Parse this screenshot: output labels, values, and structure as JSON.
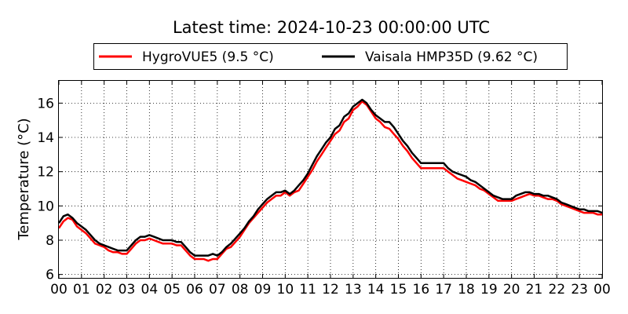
{
  "chart_data": {
    "type": "line",
    "title": "Latest time: 2024-10-23 00:00:00 UTC",
    "xlabel": "",
    "ylabel": "Temperature (°C)",
    "x_unit": "hour",
    "xlim": [
      0,
      24
    ],
    "ylim": [
      5.8,
      17.3
    ],
    "x_ticks": [
      0,
      1,
      2,
      3,
      4,
      5,
      6,
      7,
      8,
      9,
      10,
      11,
      12,
      13,
      14,
      15,
      16,
      17,
      18,
      19,
      20,
      21,
      22,
      23,
      24
    ],
    "x_tick_labels": [
      "00",
      "01",
      "02",
      "03",
      "04",
      "05",
      "06",
      "07",
      "08",
      "09",
      "10",
      "11",
      "12",
      "13",
      "14",
      "15",
      "16",
      "17",
      "18",
      "19",
      "20",
      "21",
      "22",
      "23",
      "00"
    ],
    "y_ticks": [
      6,
      8,
      10,
      12,
      14,
      16
    ],
    "y_tick_labels": [
      "6",
      "8",
      "10",
      "12",
      "14",
      "16"
    ],
    "grid": true,
    "legend_position": "top",
    "series": [
      {
        "name": "HygroVUE5 (9.5 °C)",
        "color": "#ff0000",
        "x": [
          0,
          0.2,
          0.4,
          0.6,
          0.8,
          1.0,
          1.2,
          1.4,
          1.6,
          1.8,
          2.0,
          2.2,
          2.4,
          2.6,
          2.8,
          3.0,
          3.2,
          3.4,
          3.6,
          3.8,
          4.0,
          4.2,
          4.4,
          4.6,
          4.8,
          5.0,
          5.2,
          5.4,
          5.6,
          5.8,
          6.0,
          6.2,
          6.4,
          6.6,
          6.8,
          7.0,
          7.2,
          7.4,
          7.6,
          7.8,
          8.0,
          8.2,
          8.4,
          8.6,
          8.8,
          9.0,
          9.2,
          9.4,
          9.6,
          9.8,
          10.0,
          10.2,
          10.4,
          10.6,
          10.8,
          11.0,
          11.2,
          11.4,
          11.6,
          11.8,
          12.0,
          12.2,
          12.4,
          12.6,
          12.8,
          13.0,
          13.2,
          13.4,
          13.6,
          13.8,
          14.0,
          14.2,
          14.4,
          14.6,
          14.8,
          15.0,
          15.2,
          15.4,
          15.6,
          15.8,
          16.0,
          16.2,
          16.4,
          16.6,
          16.8,
          17.0,
          17.2,
          17.4,
          17.6,
          17.8,
          18.0,
          18.2,
          18.4,
          18.6,
          18.8,
          19.0,
          19.2,
          19.4,
          19.6,
          19.8,
          20.0,
          20.2,
          20.4,
          20.6,
          20.8,
          21.0,
          21.2,
          21.4,
          21.6,
          21.8,
          22.0,
          22.2,
          22.4,
          22.6,
          22.8,
          23.0,
          23.2,
          23.4,
          23.6,
          23.8,
          24.0
        ],
        "y": [
          8.7,
          9.1,
          9.3,
          9.2,
          8.8,
          8.6,
          8.4,
          8.1,
          7.8,
          7.7,
          7.6,
          7.4,
          7.3,
          7.3,
          7.2,
          7.2,
          7.5,
          7.8,
          8.0,
          8.0,
          8.1,
          8.0,
          7.9,
          7.8,
          7.8,
          7.8,
          7.7,
          7.7,
          7.4,
          7.1,
          6.9,
          6.9,
          6.9,
          6.8,
          6.9,
          6.9,
          7.2,
          7.5,
          7.6,
          7.9,
          8.2,
          8.6,
          9.0,
          9.3,
          9.6,
          9.9,
          10.2,
          10.4,
          10.6,
          10.6,
          10.8,
          10.6,
          10.8,
          10.9,
          11.3,
          11.7,
          12.1,
          12.6,
          13.0,
          13.4,
          13.8,
          14.2,
          14.4,
          14.9,
          15.1,
          15.6,
          15.8,
          16.1,
          15.9,
          15.5,
          15.1,
          14.9,
          14.6,
          14.5,
          14.2,
          13.9,
          13.5,
          13.2,
          12.8,
          12.5,
          12.2,
          12.2,
          12.2,
          12.2,
          12.2,
          12.2,
          12.0,
          11.8,
          11.6,
          11.5,
          11.4,
          11.3,
          11.2,
          11.0,
          10.9,
          10.7,
          10.5,
          10.3,
          10.3,
          10.3,
          10.3,
          10.4,
          10.5,
          10.6,
          10.7,
          10.6,
          10.6,
          10.5,
          10.4,
          10.4,
          10.3,
          10.1,
          10.0,
          9.9,
          9.8,
          9.7,
          9.6,
          9.6,
          9.6,
          9.5,
          9.5
        ]
      },
      {
        "name": "Vaisala HMP35D (9.62 °C)",
        "color": "#000000",
        "x": [
          0,
          0.2,
          0.4,
          0.6,
          0.8,
          1.0,
          1.2,
          1.4,
          1.6,
          1.8,
          2.0,
          2.2,
          2.4,
          2.6,
          2.8,
          3.0,
          3.2,
          3.4,
          3.6,
          3.8,
          4.0,
          4.2,
          4.4,
          4.6,
          4.8,
          5.0,
          5.2,
          5.4,
          5.6,
          5.8,
          6.0,
          6.2,
          6.4,
          6.6,
          6.8,
          7.0,
          7.2,
          7.4,
          7.6,
          7.8,
          8.0,
          8.2,
          8.4,
          8.6,
          8.8,
          9.0,
          9.2,
          9.4,
          9.6,
          9.8,
          10.0,
          10.2,
          10.4,
          10.6,
          10.8,
          11.0,
          11.2,
          11.4,
          11.6,
          11.8,
          12.0,
          12.2,
          12.4,
          12.6,
          12.8,
          13.0,
          13.2,
          13.4,
          13.6,
          13.8,
          14.0,
          14.2,
          14.4,
          14.6,
          14.8,
          15.0,
          15.2,
          15.4,
          15.6,
          15.8,
          16.0,
          16.2,
          16.4,
          16.6,
          16.8,
          17.0,
          17.2,
          17.4,
          17.6,
          17.8,
          18.0,
          18.2,
          18.4,
          18.6,
          18.8,
          19.0,
          19.2,
          19.4,
          19.6,
          19.8,
          20.0,
          20.2,
          20.4,
          20.6,
          20.8,
          21.0,
          21.2,
          21.4,
          21.6,
          21.8,
          22.0,
          22.2,
          22.4,
          22.6,
          22.8,
          23.0,
          23.2,
          23.4,
          23.6,
          23.8,
          24.0
        ],
        "y": [
          9.0,
          9.4,
          9.5,
          9.3,
          9.0,
          8.8,
          8.6,
          8.3,
          8.0,
          7.8,
          7.7,
          7.6,
          7.5,
          7.4,
          7.4,
          7.4,
          7.7,
          8.0,
          8.2,
          8.2,
          8.3,
          8.2,
          8.1,
          8.0,
          8.0,
          8.0,
          7.9,
          7.9,
          7.6,
          7.3,
          7.1,
          7.1,
          7.1,
          7.1,
          7.2,
          7.1,
          7.3,
          7.6,
          7.8,
          8.1,
          8.4,
          8.7,
          9.1,
          9.4,
          9.8,
          10.1,
          10.4,
          10.6,
          10.8,
          10.8,
          10.9,
          10.7,
          10.9,
          11.2,
          11.5,
          11.9,
          12.4,
          12.9,
          13.3,
          13.7,
          14.0,
          14.5,
          14.7,
          15.2,
          15.4,
          15.8,
          16.0,
          16.2,
          16.0,
          15.6,
          15.3,
          15.1,
          14.9,
          14.9,
          14.6,
          14.2,
          13.8,
          13.5,
          13.1,
          12.8,
          12.5,
          12.5,
          12.5,
          12.5,
          12.5,
          12.5,
          12.2,
          12.0,
          11.9,
          11.8,
          11.7,
          11.5,
          11.4,
          11.2,
          11.0,
          10.8,
          10.6,
          10.5,
          10.4,
          10.4,
          10.4,
          10.6,
          10.7,
          10.8,
          10.8,
          10.7,
          10.7,
          10.6,
          10.6,
          10.5,
          10.4,
          10.2,
          10.1,
          10.0,
          9.9,
          9.8,
          9.8,
          9.7,
          9.7,
          9.7,
          9.6
        ]
      }
    ]
  }
}
